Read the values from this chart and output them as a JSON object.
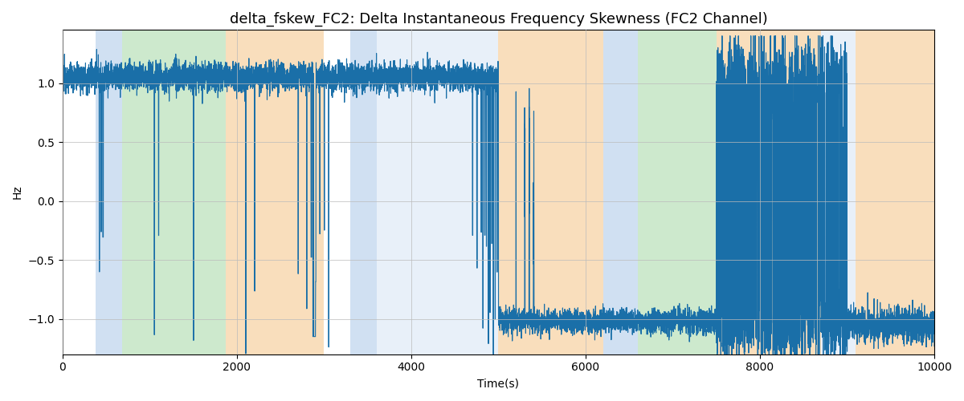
{
  "title": "delta_fskew_FC2: Delta Instantaneous Frequency Skewness (FC2 Channel)",
  "xlabel": "Time(s)",
  "ylabel": "Hz",
  "xlim": [
    0,
    10000
  ],
  "ylim": [
    -1.3,
    1.45
  ],
  "line_color": "#1a6fa8",
  "line_width": 0.8,
  "grid_color": "#bbbbbb",
  "regions": [
    {
      "start": 380,
      "end": 680,
      "color": "#aac7e8",
      "alpha": 0.55
    },
    {
      "start": 680,
      "end": 1870,
      "color": "#88cc88",
      "alpha": 0.42
    },
    {
      "start": 1870,
      "end": 3000,
      "color": "#f5c080",
      "alpha": 0.52
    },
    {
      "start": 3300,
      "end": 3600,
      "color": "#aac7e8",
      "alpha": 0.55
    },
    {
      "start": 3600,
      "end": 5000,
      "color": "#c5d8f0",
      "alpha": 0.38
    },
    {
      "start": 5000,
      "end": 6200,
      "color": "#f5c080",
      "alpha": 0.52
    },
    {
      "start": 6200,
      "end": 6600,
      "color": "#aac7e8",
      "alpha": 0.55
    },
    {
      "start": 6600,
      "end": 7500,
      "color": "#88cc88",
      "alpha": 0.42
    },
    {
      "start": 7500,
      "end": 8700,
      "color": "#f5c080",
      "alpha": 0.52
    },
    {
      "start": 8700,
      "end": 9100,
      "color": "#c5d8f0",
      "alpha": 0.38
    },
    {
      "start": 9100,
      "end": 10100,
      "color": "#f5c080",
      "alpha": 0.52
    }
  ],
  "seed": 12345,
  "n_points": 10000,
  "title_fontsize": 13,
  "xticks": [
    0,
    2000,
    4000,
    6000,
    8000,
    10000
  ]
}
